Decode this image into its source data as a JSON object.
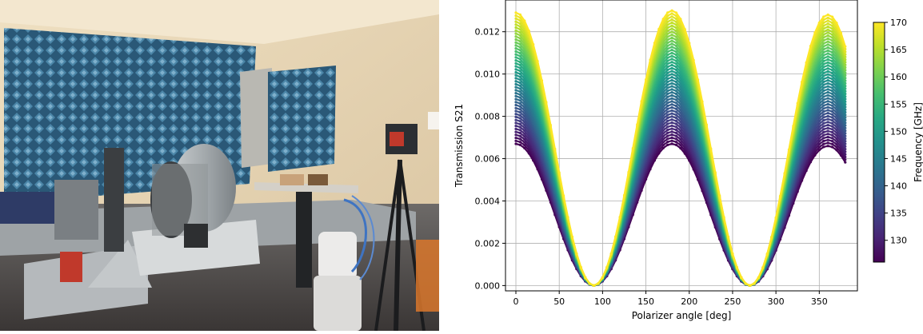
{
  "photo": {
    "description_icon": "lab-photo",
    "colors": {
      "wall": "#e7d6b8",
      "absorber": "#2f5f7e",
      "metal": "#9aa0a3"
    }
  },
  "chart_data": {
    "type": "line",
    "title": "",
    "xlabel": "Polarizer angle [deg]",
    "ylabel": "Transmission S21",
    "xlim": [
      -12,
      394
    ],
    "ylim": [
      -0.00025,
      0.0135
    ],
    "xticks": [
      0,
      50,
      100,
      150,
      200,
      250,
      300,
      350
    ],
    "yticks": [
      0.0,
      0.002,
      0.004,
      0.006,
      0.008,
      0.01,
      0.012
    ],
    "ytick_labels": [
      "0.000",
      "0.002",
      "0.004",
      "0.006",
      "0.008",
      "0.010",
      "0.012"
    ],
    "grid": true,
    "legend": "none",
    "angle_range": [
      0,
      380
    ],
    "angle_step": 5,
    "min_angles": [
      90,
      270
    ],
    "peak_angles": [
      0,
      180,
      360
    ],
    "series_family": {
      "frequency_range_GHz": [
        126,
        170
      ],
      "peak_at_0deg": {
        "126": 0.0067,
        "170": 0.0129
      },
      "peak_at_180deg": {
        "126": 0.0067,
        "170": 0.013
      },
      "peak_at_360deg": {
        "126": 0.0066,
        "170": 0.0128
      },
      "value_at_380deg": {
        "126": 0.0049,
        "170": 0.012
      },
      "min_value": 0.0
    },
    "colorbar": {
      "label": "Frequency [GHz]",
      "colormap": "viridis",
      "range": [
        126,
        170
      ],
      "ticks": [
        130,
        135,
        140,
        145,
        150,
        155,
        160,
        165,
        170
      ]
    }
  }
}
